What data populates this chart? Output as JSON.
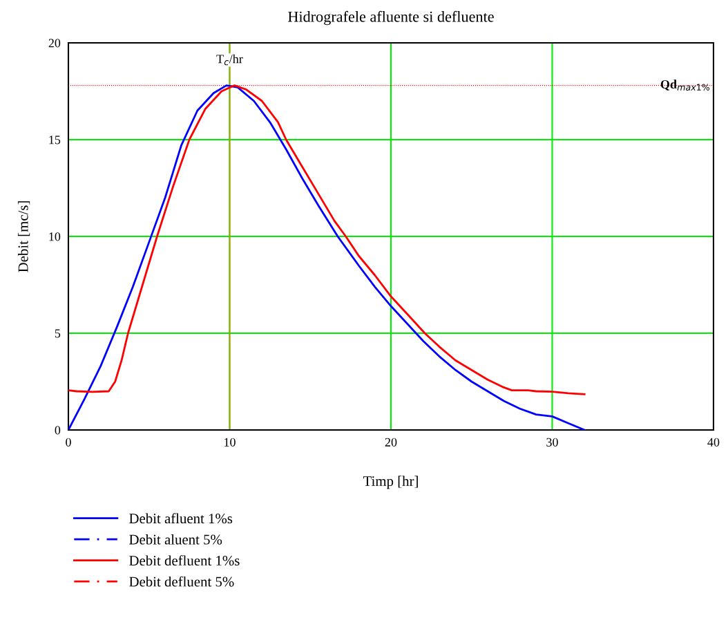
{
  "chart_data": {
    "type": "line",
    "title": "Hidrografele afluente si defluente",
    "xlabel": "Timp [hr]",
    "ylabel": "Debit [mc/s]",
    "xlim": [
      0,
      40
    ],
    "ylim": [
      0,
      20
    ],
    "xticks": [
      0,
      10,
      20,
      30,
      40
    ],
    "yticks": [
      0,
      5,
      10,
      15,
      20
    ],
    "grid": true,
    "legend": "bottom left",
    "marker": "none",
    "series": [
      {
        "name": "Debit afluent 1%s",
        "color": "#0000ff",
        "line_style": "solid",
        "x": [
          0,
          1,
          2,
          3,
          4,
          5,
          6,
          7,
          8,
          9,
          9.8,
          10.5,
          11.5,
          12.5,
          13.5,
          14.5,
          15.5,
          16.7,
          18,
          19,
          20,
          21,
          22,
          23,
          24,
          25,
          26,
          27,
          28,
          29,
          30,
          31,
          32
        ],
        "values": [
          0,
          1.6,
          3.3,
          5.3,
          7.4,
          9.7,
          12.0,
          14.7,
          16.5,
          17.4,
          17.8,
          17.7,
          17.0,
          15.9,
          14.5,
          13.0,
          11.6,
          10.0,
          8.5,
          7.4,
          6.4,
          5.5,
          4.6,
          3.8,
          3.1,
          2.5,
          2.0,
          1.5,
          1.1,
          0.8,
          0.7,
          0.35,
          0
        ]
      },
      {
        "name": "Debit aluent 5%",
        "color": "#0000ff",
        "line_style": "dashed"
      },
      {
        "name": "Debit defluent 1%s",
        "color": "#ff0000",
        "line_style": "solid",
        "x": [
          0,
          0.5,
          1.5,
          2.5,
          2.9,
          3.3,
          3.7,
          4.6,
          5.5,
          6.5,
          7.5,
          8.5,
          9.5,
          10.3,
          11,
          12,
          13,
          13.5,
          14.5,
          15.5,
          16.5,
          17.2,
          18,
          19,
          20,
          21,
          22.1,
          23,
          24,
          25,
          26,
          27,
          27.5,
          28.5,
          29,
          30,
          31,
          32
        ],
        "values": [
          2.05,
          2.0,
          1.97,
          2.0,
          2.5,
          3.6,
          5.0,
          7.5,
          10.0,
          12.6,
          15.0,
          16.6,
          17.5,
          17.8,
          17.6,
          17.0,
          15.9,
          15.0,
          13.6,
          12.2,
          10.8,
          10.0,
          9.0,
          8.0,
          6.9,
          6.0,
          5.0,
          4.3,
          3.6,
          3.1,
          2.6,
          2.2,
          2.05,
          2.05,
          2.0,
          1.98,
          1.9,
          1.85
        ]
      },
      {
        "name": "Debit defluent 5%",
        "color": "#ff0000",
        "line_style": "dashed"
      }
    ],
    "ref_lines": [
      {
        "axis": "x",
        "value": 10,
        "label": "T$_{c}$/hr",
        "color": "#c09000",
        "line_style": "solid"
      },
      {
        "axis": "y",
        "value": 17.8,
        "label": "Qd$_{max1%}$",
        "color": "#ff0000",
        "line_style": "dotted"
      }
    ]
  }
}
